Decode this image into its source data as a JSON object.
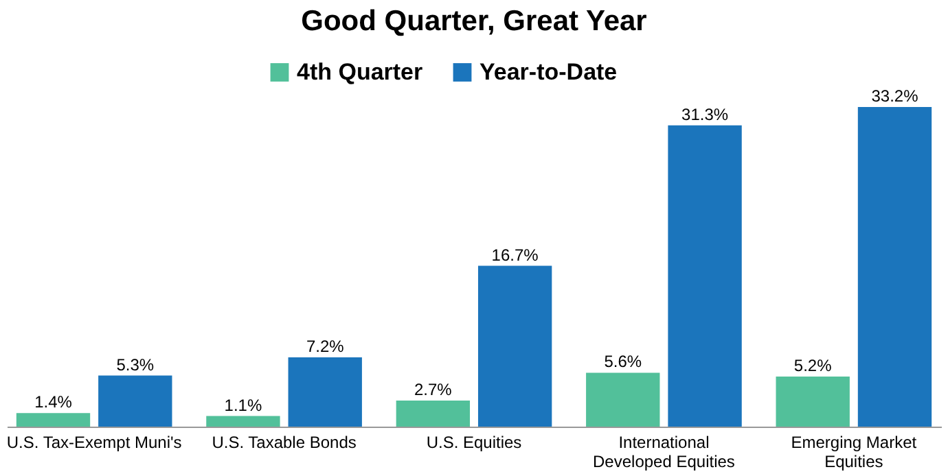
{
  "chart_data": {
    "type": "bar",
    "title": "Good Quarter, Great Year",
    "categories": [
      "U.S. Tax-Exempt Muni's",
      "U.S. Taxable Bonds",
      "U.S. Equities",
      "International Developed Equities",
      "Emerging Market Equities"
    ],
    "series": [
      {
        "name": "4th Quarter",
        "color": "#52c09a",
        "values": [
          1.4,
          1.1,
          2.7,
          5.6,
          5.2
        ],
        "value_labels": [
          "1.4%",
          "1.1%",
          "2.7%",
          "5.6%",
          "5.2%"
        ]
      },
      {
        "name": "Year-to-Date",
        "color": "#1b75bc",
        "values": [
          5.3,
          7.2,
          16.7,
          31.3,
          33.2
        ],
        "value_labels": [
          "5.3%",
          "7.2%",
          "16.7%",
          "31.3%",
          "33.2%"
        ]
      }
    ],
    "legend": "top",
    "grid": false
  }
}
